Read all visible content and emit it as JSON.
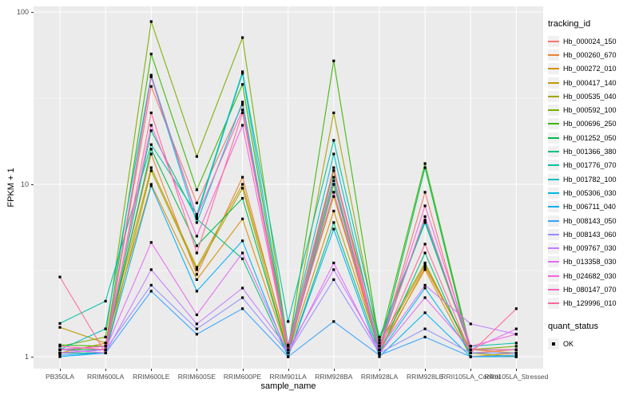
{
  "chart_data": {
    "type": "line",
    "title": "",
    "xlabel": "sample_name",
    "ylabel": "FPKM + 1",
    "y_scale": "log10",
    "ylim": [
      1,
      100
    ],
    "yticks": [
      "1",
      "10",
      "100"
    ],
    "ytick_values": [
      1,
      10,
      100
    ],
    "minor_ytick_values": [
      3.1623,
      31.623
    ],
    "grid": true,
    "legend_position": "right",
    "legend_title": "tracking_id",
    "categories": [
      "PB350LA",
      "RRIM600LA",
      "RRIM600LE",
      "RRIM600SE",
      "RRIM600PE",
      "RRIM901LA",
      "RRIM928BA",
      "RRIM928LA",
      "RRIM928LE",
      "RRII105LA_Control",
      "RRII105LA_Stressed"
    ],
    "series": [
      {
        "name": "Hb_000024_150",
        "color": "#F8766D",
        "values": [
          1.05,
          1.1,
          37.0,
          7.8,
          29.0,
          1.05,
          12.0,
          1.1,
          9.0,
          1.05,
          1.1
        ]
      },
      {
        "name": "Hb_000260_670",
        "color": "#EA8331",
        "values": [
          1.1,
          1.15,
          15.0,
          3.0,
          11.0,
          1.1,
          9.0,
          1.05,
          3.3,
          1.1,
          1.05
        ]
      },
      {
        "name": "Hb_000272_010",
        "color": "#D89000",
        "values": [
          1.05,
          1.2,
          10.0,
          2.8,
          6.3,
          1.05,
          7.0,
          1.1,
          3.2,
          1.0,
          1.05
        ]
      },
      {
        "name": "Hb_000417_140",
        "color": "#C09B00",
        "values": [
          1.48,
          1.2,
          12.5,
          3.3,
          10.0,
          1.15,
          8.5,
          1.15,
          3.4,
          1.1,
          1.1
        ]
      },
      {
        "name": "Hb_000535_040",
        "color": "#A3A500",
        "values": [
          1.1,
          1.05,
          12.0,
          3.2,
          9.5,
          1.05,
          26.0,
          1.2,
          3.5,
          1.05,
          1.0
        ]
      },
      {
        "name": "Hb_000592_100",
        "color": "#7CAE00",
        "values": [
          1.15,
          1.3,
          88.0,
          14.5,
          71.0,
          1.15,
          12.0,
          1.25,
          6.0,
          1.1,
          1.15
        ]
      },
      {
        "name": "Hb_000696_250",
        "color": "#39B600",
        "values": [
          1.17,
          1.15,
          57.0,
          9.3,
          38.0,
          1.1,
          52.0,
          1.2,
          13.2,
          1.1,
          1.1
        ]
      },
      {
        "name": "Hb_001252_050",
        "color": "#00BB4E",
        "values": [
          1.1,
          1.1,
          16.0,
          4.4,
          8.3,
          1.05,
          10.0,
          1.1,
          12.5,
          1.05,
          1.05
        ]
      },
      {
        "name": "Hb_001366_380",
        "color": "#00BF7D",
        "values": [
          1.05,
          1.05,
          20.5,
          6.3,
          3.7,
          1.0,
          6.0,
          1.05,
          4.0,
          1.0,
          1.0
        ]
      },
      {
        "name": "Hb_001776_070",
        "color": "#00C1A3",
        "values": [
          1.56,
          2.1,
          17.0,
          6.7,
          45.0,
          1.6,
          18.0,
          1.3,
          6.0,
          1.15,
          1.2
        ]
      },
      {
        "name": "Hb_001782_100",
        "color": "#00BFC4",
        "values": [
          1.1,
          1.45,
          43.0,
          6.5,
          44.0,
          1.17,
          15.0,
          1.15,
          6.2,
          1.1,
          1.1
        ]
      },
      {
        "name": "Hb_005306_030",
        "color": "#00BAE0",
        "values": [
          1.05,
          1.1,
          42.0,
          6.0,
          30.0,
          1.1,
          11.0,
          1.05,
          2.5,
          1.05,
          1.05
        ]
      },
      {
        "name": "Hb_006711_040",
        "color": "#00B0F6",
        "values": [
          1.0,
          1.05,
          9.8,
          2.4,
          4.7,
          1.0,
          5.5,
          1.0,
          1.8,
          1.0,
          1.0
        ]
      },
      {
        "name": "Hb_008143_050",
        "color": "#35A2FF",
        "values": [
          1.02,
          1.05,
          2.4,
          1.35,
          1.9,
          1.0,
          1.6,
          1.02,
          1.3,
          1.0,
          1.02
        ]
      },
      {
        "name": "Hb_008143_060",
        "color": "#9590FF",
        "values": [
          1.05,
          1.1,
          2.6,
          1.45,
          2.2,
          1.05,
          2.8,
          1.05,
          1.45,
          1.05,
          1.05
        ]
      },
      {
        "name": "Hb_009767_030",
        "color": "#C77CFF",
        "values": [
          1.1,
          1.05,
          3.2,
          1.55,
          2.5,
          1.1,
          3.2,
          1.1,
          2.6,
          1.55,
          1.35
        ]
      },
      {
        "name": "Hb_013358_030",
        "color": "#E76BF3",
        "values": [
          1.05,
          1.1,
          4.6,
          1.75,
          4.0,
          1.05,
          3.5,
          1.05,
          2.2,
          1.1,
          1.45
        ]
      },
      {
        "name": "Hb_024682_030",
        "color": "#FA62DB",
        "values": [
          1.1,
          1.15,
          22.0,
          5.0,
          22.0,
          1.1,
          9.0,
          1.15,
          7.5,
          1.15,
          1.35
        ]
      },
      {
        "name": "Hb_080147_070",
        "color": "#FF62BC",
        "values": [
          1.15,
          1.1,
          42.0,
          6.5,
          27.0,
          1.15,
          12.5,
          1.1,
          6.5,
          1.1,
          1.1
        ]
      },
      {
        "name": "Hb_129996_010",
        "color": "#FF6A98",
        "values": [
          2.9,
          1.05,
          26.0,
          4.0,
          26.0,
          1.1,
          10.5,
          1.1,
          4.5,
          1.05,
          1.9
        ]
      }
    ],
    "quant_legend": {
      "title": "quant_status",
      "items": [
        {
          "label": "OK",
          "marker": "black-square"
        }
      ]
    },
    "theme": {
      "panel_bg": "#EBEBEB",
      "grid_color": "#FFFFFF",
      "point_color": "#000000",
      "tick_label_color": "#4D4D4D",
      "axis_title_color": "#000000",
      "legend_key_bg": "#F0F0F0"
    }
  }
}
